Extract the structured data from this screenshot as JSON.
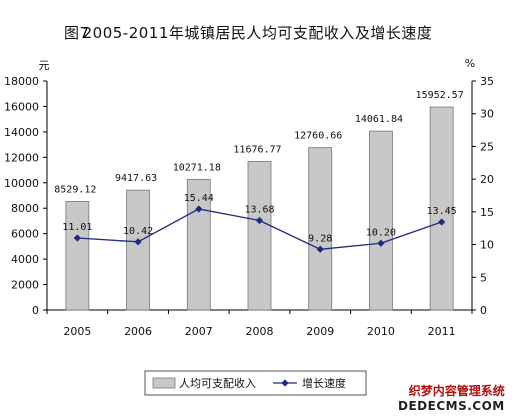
{
  "header": {
    "figure_no": "图7",
    "title": "2005-2011年城镇居民人均可支配收入及增长速度"
  },
  "watermark": {
    "line1": "织梦内容管理系统",
    "line2": "DEDECMS.COM"
  },
  "chart_data": {
    "type": "bar",
    "categories": [
      "2005",
      "2006",
      "2007",
      "2008",
      "2009",
      "2010",
      "2011"
    ],
    "series": [
      {
        "name": "人均可支配收入",
        "type": "bar",
        "axis": "left",
        "values": [
          8529.12,
          9417.63,
          10271.18,
          11676.77,
          12760.66,
          14061.84,
          15952.57
        ],
        "labels": [
          "8529.12",
          "9417.63",
          "10271.18",
          "11676.77",
          "12760.66",
          "14061.84",
          "15952.57"
        ],
        "color": "#c8c8c8"
      },
      {
        "name": "增长速度",
        "type": "line",
        "axis": "right",
        "values": [
          11.01,
          10.42,
          15.44,
          13.68,
          9.28,
          10.2,
          13.45
        ],
        "labels": [
          "11.01",
          "10.42",
          "15.44",
          "13.68",
          "9.28",
          "10.20",
          "13.45"
        ],
        "color": "#1f2a7a"
      }
    ],
    "y_left": {
      "unit": "元",
      "ylim": [
        0,
        18000
      ],
      "ticks": [
        "0",
        "2000",
        "4000",
        "6000",
        "8000",
        "10000",
        "12000",
        "14000",
        "16000",
        "18000"
      ]
    },
    "y_right": {
      "unit": "%",
      "ylim": [
        0,
        35
      ],
      "ticks": [
        "0",
        "5",
        "10",
        "15",
        "20",
        "25",
        "30",
        "35"
      ]
    },
    "grid": false,
    "legend": "bottom-center"
  }
}
